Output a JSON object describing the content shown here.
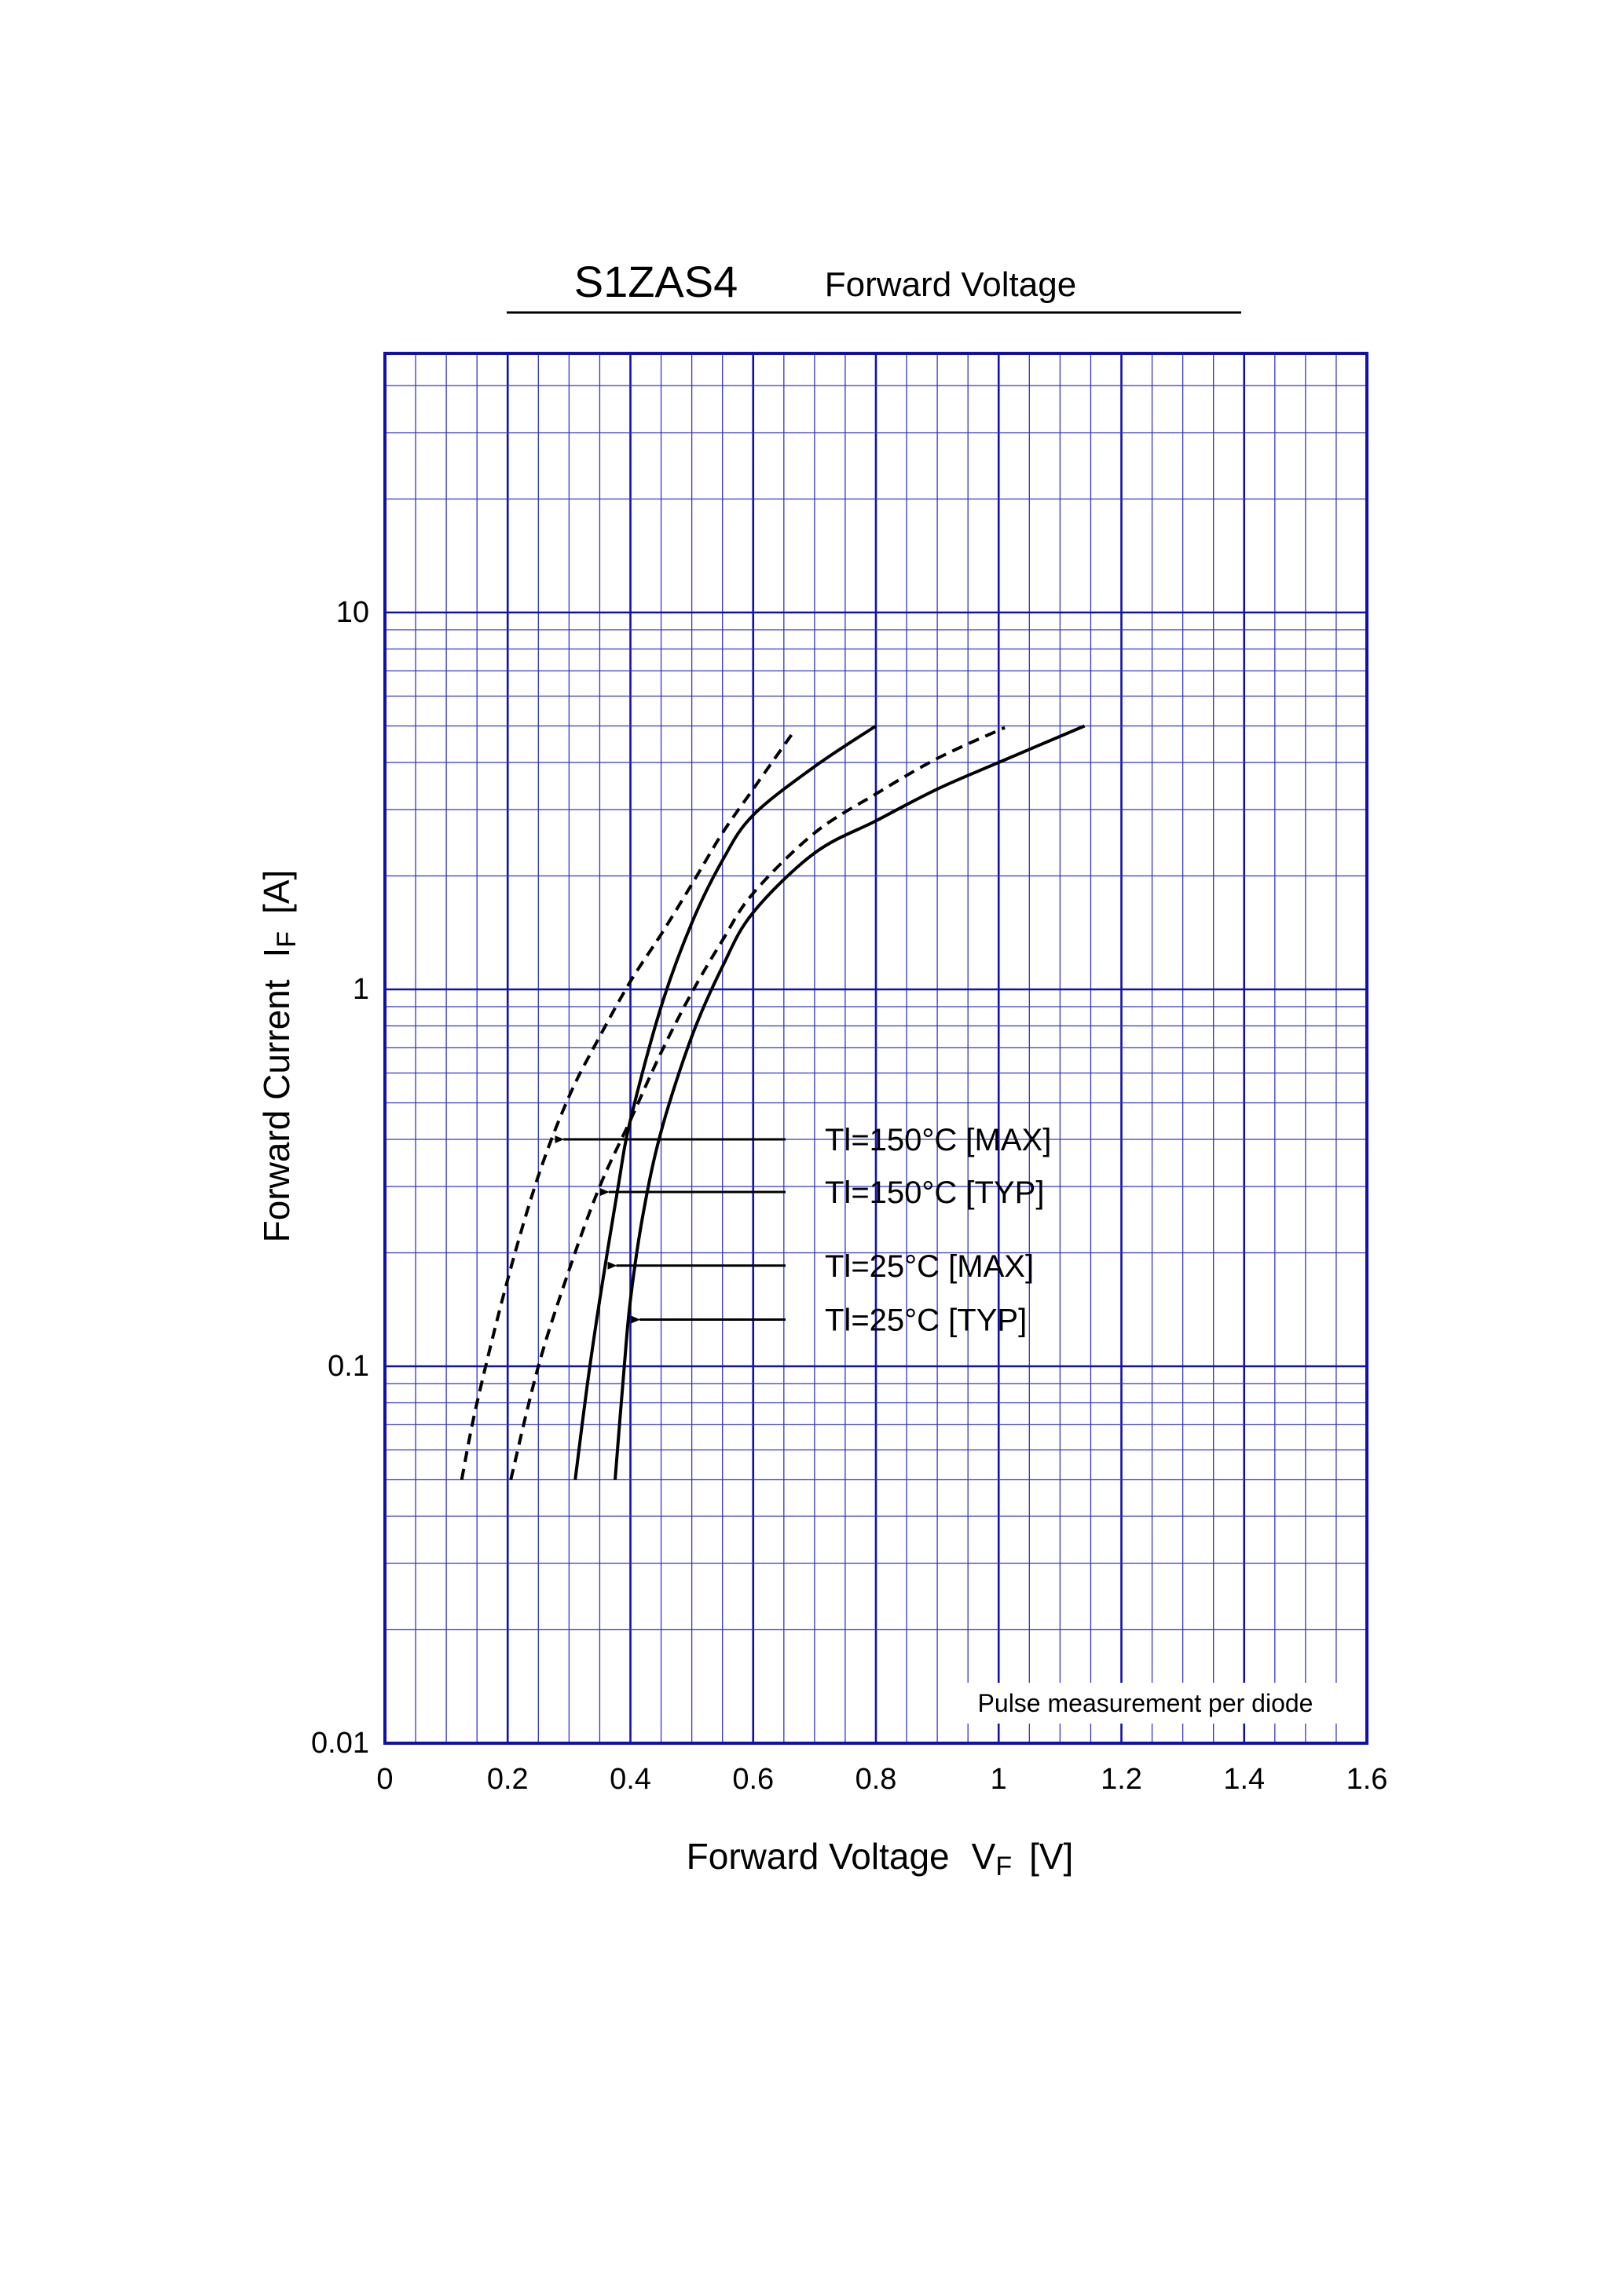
{
  "header": {
    "part_number": "S1ZAS4",
    "chart_name": "Forward Voltage"
  },
  "colors": {
    "grid": "#3333CC",
    "frame": "#1010B0",
    "curve": "#000000",
    "background": "#FFFFFF"
  },
  "chart_data": {
    "type": "line",
    "title": "S1ZAS4",
    "subtitle": "Forward Voltage",
    "xlabel": {
      "main": "Forward Voltage",
      "symbol": "V",
      "sub": "F",
      "unit": "[V]"
    },
    "ylabel": {
      "main": "Forward Current",
      "symbol": "I",
      "sub": "F",
      "unit": "[A]"
    },
    "x_scale": "linear",
    "y_scale": "log",
    "xlim": [
      0,
      1.6
    ],
    "ylim": [
      0.01,
      50
    ],
    "grid": true,
    "x_ticks": [
      {
        "value": 0,
        "label": "0"
      },
      {
        "value": 0.2,
        "label": "0.2"
      },
      {
        "value": 0.4,
        "label": "0.4"
      },
      {
        "value": 0.6,
        "label": "0.6"
      },
      {
        "value": 0.8,
        "label": "0.8"
      },
      {
        "value": 1.0,
        "label": "1"
      },
      {
        "value": 1.2,
        "label": "1.2"
      },
      {
        "value": 1.4,
        "label": "1.4"
      },
      {
        "value": 1.6,
        "label": "1.6"
      }
    ],
    "y_ticks": [
      {
        "value": 0.01,
        "label": "0.01"
      },
      {
        "value": 0.1,
        "label": "0.1"
      },
      {
        "value": 1,
        "label": "1"
      },
      {
        "value": 10,
        "label": "10"
      }
    ],
    "note": "Pulse measurement per diode",
    "series": [
      {
        "name": "Tl=150°C [MAX]",
        "style": "dashed",
        "points": [
          [
            0.125,
            0.05
          ],
          [
            0.15,
            0.08
          ],
          [
            0.2,
            0.17
          ],
          [
            0.25,
            0.32
          ],
          [
            0.3,
            0.52
          ],
          [
            0.35,
            0.75
          ],
          [
            0.4,
            1.05
          ],
          [
            0.45,
            1.4
          ],
          [
            0.5,
            1.9
          ],
          [
            0.55,
            2.6
          ],
          [
            0.6,
            3.4
          ],
          [
            0.665,
            4.8
          ]
        ]
      },
      {
        "name": "Tl=150°C [TYP]",
        "style": "dashed",
        "points": [
          [
            0.205,
            0.05
          ],
          [
            0.25,
            0.1
          ],
          [
            0.3,
            0.18
          ],
          [
            0.35,
            0.3
          ],
          [
            0.4,
            0.45
          ],
          [
            0.45,
            0.68
          ],
          [
            0.5,
            0.98
          ],
          [
            0.55,
            1.35
          ],
          [
            0.6,
            1.8
          ],
          [
            0.7,
            2.6
          ],
          [
            0.8,
            3.3
          ],
          [
            0.9,
            4.1
          ],
          [
            1.01,
            4.95
          ]
        ]
      },
      {
        "name": "Tl=25°C [MAX]",
        "style": "solid",
        "points": [
          [
            0.31,
            0.05
          ],
          [
            0.33,
            0.09
          ],
          [
            0.35,
            0.15
          ],
          [
            0.38,
            0.3
          ],
          [
            0.4,
            0.45
          ],
          [
            0.45,
            0.9
          ],
          [
            0.5,
            1.5
          ],
          [
            0.55,
            2.2
          ],
          [
            0.6,
            2.9
          ],
          [
            0.7,
            3.9
          ],
          [
            0.8,
            5.0
          ]
        ]
      },
      {
        "name": "Tl=25°C [TYP]",
        "style": "solid",
        "points": [
          [
            0.375,
            0.05
          ],
          [
            0.39,
            0.1
          ],
          [
            0.4,
            0.15
          ],
          [
            0.42,
            0.25
          ],
          [
            0.45,
            0.42
          ],
          [
            0.5,
            0.75
          ],
          [
            0.55,
            1.15
          ],
          [
            0.6,
            1.6
          ],
          [
            0.7,
            2.3
          ],
          [
            0.8,
            2.8
          ],
          [
            0.9,
            3.4
          ],
          [
            1.0,
            4.0
          ],
          [
            1.14,
            5.0
          ]
        ]
      }
    ],
    "annotations": [
      {
        "label": "Tl=150°C [MAX]",
        "target_series": 0,
        "at_y": 0.4
      },
      {
        "label": "Tl=150°C [TYP]",
        "target_series": 1,
        "at_y": 0.29
      },
      {
        "label": "Tl=25°C [MAX]",
        "target_series": 2,
        "at_y": 0.185
      },
      {
        "label": "Tl=25°C [TYP]",
        "target_series": 3,
        "at_y": 0.133
      }
    ]
  }
}
